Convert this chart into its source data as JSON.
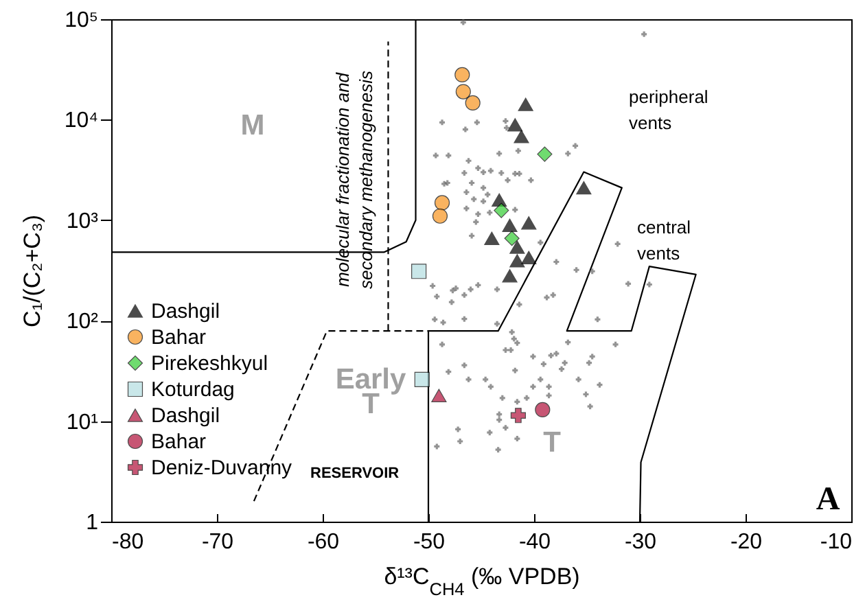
{
  "chart_data": {
    "type": "scatter",
    "xlabel": "δ¹³C$_{CH4}$ (‰ VPDB)",
    "ylabel": "C₁/(C₂+C₃)",
    "log": "y",
    "legend": "bottom left",
    "xlim": [
      -80,
      -10
    ],
    "xticks": [
      -80,
      -70,
      -60,
      -50,
      -40,
      -30,
      -20,
      -10
    ],
    "ylim": [
      1,
      100000
    ],
    "yticks": [
      1,
      {
        "value": 10,
        "label": "10¹"
      },
      {
        "value": 100,
        "label": "10²"
      },
      {
        "value": 1000,
        "label": "10³"
      },
      {
        "value": 10000,
        "label": "10⁴"
      },
      {
        "value": 100000,
        "label": "10⁵"
      }
    ],
    "series": [
      {
        "type": "line",
        "color": "#000000",
        "x": [
          -80,
          -54.2,
          -52.1,
          -51.2,
          -51.2
        ],
        "values": [
          480,
          480,
          610,
          1000,
          100000
        ]
      },
      {
        "type": "line",
        "color": "#000000",
        "line_style": "dashed",
        "x": [
          -66.5,
          -59.6,
          -50
        ],
        "values": [
          1.6,
          79,
          79
        ]
      },
      {
        "type": "line",
        "color": "#000000",
        "x": [
          -50,
          -50,
          -43.4,
          -35.3,
          -31.7,
          -36.9,
          -30.8,
          -29.1,
          -24.7,
          -29.9,
          -30
        ],
        "values": [
          1,
          79,
          79,
          3020,
          2100,
          79,
          79,
          347,
          288,
          3.9,
          1
        ]
      },
      {
        "type": "line",
        "color": "#000000",
        "line_style": "dashed",
        "x": [
          -53.8,
          -53.8
        ],
        "values": [
          79,
          60000
        ]
      },
      {
        "color": "#666666",
        "marker": "cross",
        "x": [
          -46.7,
          -29.6,
          -48.7,
          -46.5,
          -45.4,
          -42.7,
          -42.6,
          -49.3,
          -48.1,
          -46.2,
          -43.3,
          -41.5,
          -36.1,
          -36.8,
          -45.3,
          -44.8,
          -44.1,
          -46.6,
          -43.1,
          -41.8,
          -41.4,
          -40.3,
          -42.5,
          -48.5,
          -48.2,
          -45.9,
          -44.8,
          -46.4,
          -44.4,
          -45.7,
          -44.8,
          -46.4,
          -45.3,
          -44.2,
          -45.5,
          -41.8,
          -45.9,
          -39.4,
          -37.9,
          -36.0,
          -34.5,
          -32.1,
          -49.6,
          -47.4,
          -46.0,
          -45.3,
          -43.5,
          -49.2,
          -47.7,
          -46.6,
          -47.8,
          -41.4,
          -38.8,
          -38.2,
          -49.4,
          -48.6,
          -46.6,
          -43.5,
          -34.0,
          -31.1,
          -29.1,
          -42.1,
          -41.9,
          -42.2,
          -41.6,
          -42.7,
          -48.7,
          -36.8,
          -32.3,
          -40.1,
          -38.4,
          -37.9,
          -39.1,
          -37.4,
          -37.1,
          -34.5,
          -34.8,
          -46.6,
          -48.1,
          -46.2,
          -44.6,
          -44.1,
          -41.8,
          -39.4,
          -40.1,
          -38.6,
          -38.6,
          -35.8,
          -33.8,
          -35.1,
          -34.7,
          -43.0,
          -41.6,
          -40.7,
          -43.3,
          -43.3,
          -47.2,
          -47.0,
          -44.2,
          -42.7,
          -41.6,
          -49.2,
          -43.4
        ],
        "values": [
          93000,
          71000,
          9400,
          8000,
          9400,
          9700,
          8300,
          4400,
          4400,
          3900,
          4600,
          4900,
          5500,
          4600,
          3300,
          3000,
          3100,
          2950,
          2950,
          2900,
          2900,
          2500,
          2500,
          2300,
          2350,
          2350,
          2100,
          1900,
          1800,
          1620,
          1540,
          1310,
          1150,
          1190,
          960,
          1270,
          700,
          600,
          385,
          320,
          310,
          580,
          222,
          210,
          205,
          226,
          205,
          174,
          200,
          180,
          153,
          145,
          170,
          180,
          103,
          96,
          104,
          93,
          103,
          233,
          229,
          77,
          66,
          51,
          60,
          51,
          58,
          61,
          58,
          44,
          45,
          47,
          37,
          33,
          38,
          44,
          38,
          36,
          31,
          26,
          26,
          22,
          32,
          26,
          22,
          22,
          18,
          26,
          23,
          18.5,
          14,
          17,
          15.6,
          17,
          11.7,
          10.3,
          8.3,
          6.3,
          7.7,
          8.6,
          6.7,
          5.6,
          5.2
        ]
      },
      {
        "name": "Dashgil",
        "color": "#000000",
        "marker": "triangle",
        "x": [
          -40.8,
          -41.8,
          -41.2,
          -35.3,
          -43.3,
          -40.5,
          -42.3,
          -44.0,
          -41.6,
          -40.5,
          -41.6,
          -42.3
        ],
        "values": [
          14200,
          8900,
          6800,
          2100,
          1590,
          940,
          890,
          660,
          540,
          425,
          395,
          280
        ]
      },
      {
        "name": "Bahar",
        "color": "#f7931e",
        "marker": "circle",
        "x": [
          -46.8,
          -46.7,
          -45.8,
          -48.7,
          -48.9
        ],
        "values": [
          28000,
          19000,
          14700,
          1490,
          1100
        ]
      },
      {
        "name": "Pirekeshkyul",
        "color": "#33cc33",
        "marker": "diamond",
        "x": [
          -39.0,
          -43.1,
          -42.1
        ],
        "values": [
          4540,
          1250,
          660
        ]
      },
      {
        "name": "Koturdag",
        "color": "#b3dde0",
        "marker": "square",
        "x": [
          -50.9,
          -50.6
        ],
        "values": [
          310,
          26
        ]
      },
      {
        "name": "Dashgil",
        "color": "#b0103a",
        "marker": "triangle",
        "x": [
          -49.0
        ],
        "values": [
          18
        ]
      },
      {
        "name": "Bahar",
        "color": "#b0103a",
        "marker": "circle",
        "x": [
          -39.2
        ],
        "values": [
          13
        ]
      },
      {
        "name": "Deniz-Duvanny",
        "color": "#b0103a",
        "marker": "cross",
        "x": [
          -41.5
        ],
        "values": [
          11.4
        ]
      }
    ],
    "annotations": [
      "M",
      "Early",
      "T",
      "T",
      "peripheral\nvents",
      "central\nvents",
      "molecular fractionation and\nsecondary methanogenesis",
      "RESERVOIR",
      "A"
    ]
  }
}
